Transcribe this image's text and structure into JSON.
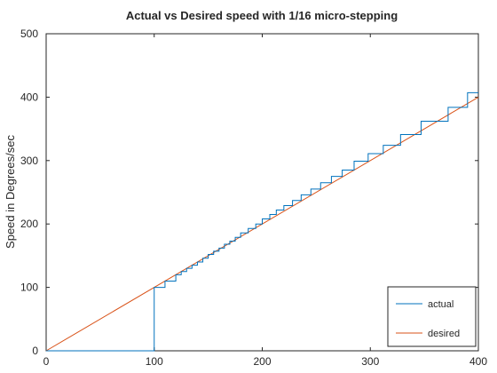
{
  "chart_data": {
    "type": "line",
    "title": "Actual vs Desired speed with 1/16 micro-stepping",
    "xlabel": "",
    "ylabel": "Speed in Degrees/sec",
    "xlim": [
      0,
      400
    ],
    "ylim": [
      0,
      500
    ],
    "xticks": [
      "0",
      "100",
      "200",
      "300",
      "400"
    ],
    "yticks": [
      "0",
      "100",
      "200",
      "300",
      "400",
      "500"
    ],
    "grid": false,
    "legend_position": "bottom-right",
    "series": [
      {
        "name": "actual",
        "color": "#0072bd",
        "style": "step",
        "x": [
          0,
          100,
          110,
          120,
          125,
          130,
          135,
          140,
          145,
          150,
          155,
          160,
          165,
          170,
          175,
          180,
          187,
          194,
          200,
          207,
          213,
          220,
          228,
          236,
          245,
          254,
          264,
          274,
          285,
          298,
          312,
          328,
          347,
          372,
          390,
          400
        ],
        "y": [
          0,
          100,
          110,
          120,
          125,
          130,
          135,
          140,
          146,
          152,
          157,
          162,
          168,
          173,
          179,
          186,
          193,
          200,
          208,
          215,
          222,
          229,
          237,
          246,
          255,
          265,
          275,
          285,
          299,
          311,
          324,
          341,
          362,
          384,
          407,
          407
        ]
      },
      {
        "name": "desired",
        "color": "#d95319",
        "style": "line",
        "x": [
          0,
          400
        ],
        "y": [
          0,
          400
        ]
      }
    ]
  }
}
